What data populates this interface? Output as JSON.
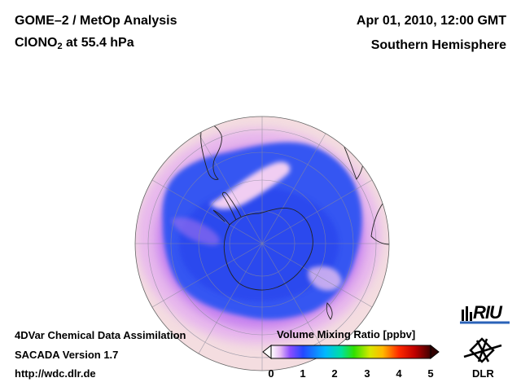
{
  "header": {
    "title_line1": "GOME–2 / MetOp Analysis",
    "species_prefix": "ClONO",
    "species_sub": "2",
    "species_suffix": " at 55.4 hPa",
    "datetime": "Apr 01, 2010, 12:00 GMT",
    "hemisphere": "Southern Hemisphere"
  },
  "footer": {
    "line1": "4DVar Chemical Data Assimilation",
    "line2": "SACADA Version 1.7",
    "line3": "http://wdc.dlr.de"
  },
  "colorbar": {
    "title": "Volume Mixing Ratio [ppbv]",
    "ticks": [
      "0",
      "1",
      "2",
      "3",
      "4",
      "5"
    ],
    "range": [
      0,
      5
    ],
    "colors": [
      "#ffffff",
      "#d8a8f0",
      "#7a3cff",
      "#1a4dff",
      "#00c8ff",
      "#00e060",
      "#c8e600",
      "#ffc800",
      "#ff3000",
      "#b00000",
      "#300000"
    ]
  },
  "logos": {
    "riu": "RIU",
    "dlr": "DLR"
  },
  "map": {
    "projection": "orthographic",
    "pole": "South Pole",
    "background_color": "#f6dde2",
    "low_color": "#3654f0"
  }
}
